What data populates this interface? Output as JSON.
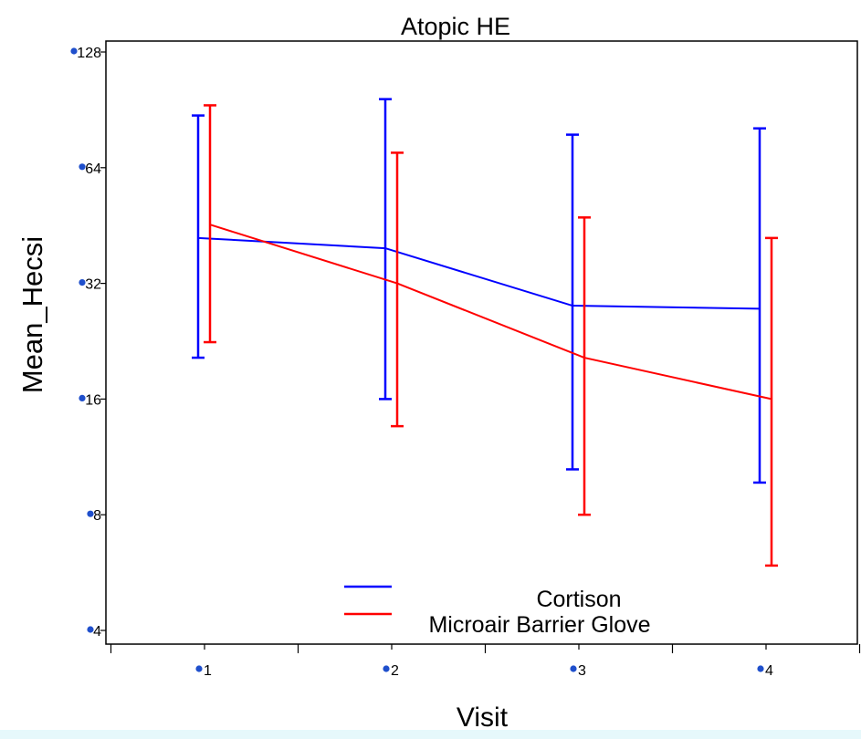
{
  "chart_data": {
    "type": "line",
    "title": "Atopic HE",
    "xlabel": "Visit",
    "ylabel": "Mean_Hecsi",
    "y_scale": "log2",
    "ylim": [
      4,
      128
    ],
    "xlim": [
      0.5,
      4.5
    ],
    "yticks": [
      4,
      8,
      16,
      32,
      64,
      128
    ],
    "y_tick_labels": [
      "4",
      "8",
      "16",
      "32",
      "64",
      "128"
    ],
    "x": [
      1,
      2,
      3,
      4
    ],
    "x_tick_labels": [
      "1",
      "2",
      "3",
      "4"
    ],
    "grid": false,
    "legend_position": "bottom-center",
    "series": [
      {
        "name": "Cortison",
        "color": "#0000ff",
        "values": [
          42,
          39.5,
          28,
          27.5
        ],
        "lower": [
          20.5,
          16,
          10.5,
          9.7
        ],
        "upper": [
          87.5,
          96.5,
          78,
          81
        ]
      },
      {
        "name": "Microair Barrier Glove",
        "color": "#ff0000",
        "values": [
          45.5,
          32,
          20.5,
          16
        ],
        "lower": [
          22.5,
          13.6,
          8,
          5.9
        ],
        "upper": [
          93,
          70,
          47.5,
          42
        ]
      }
    ]
  },
  "colors": {
    "tick_dot": "#1f4fcc",
    "background_strip": "#e6f8fb"
  }
}
